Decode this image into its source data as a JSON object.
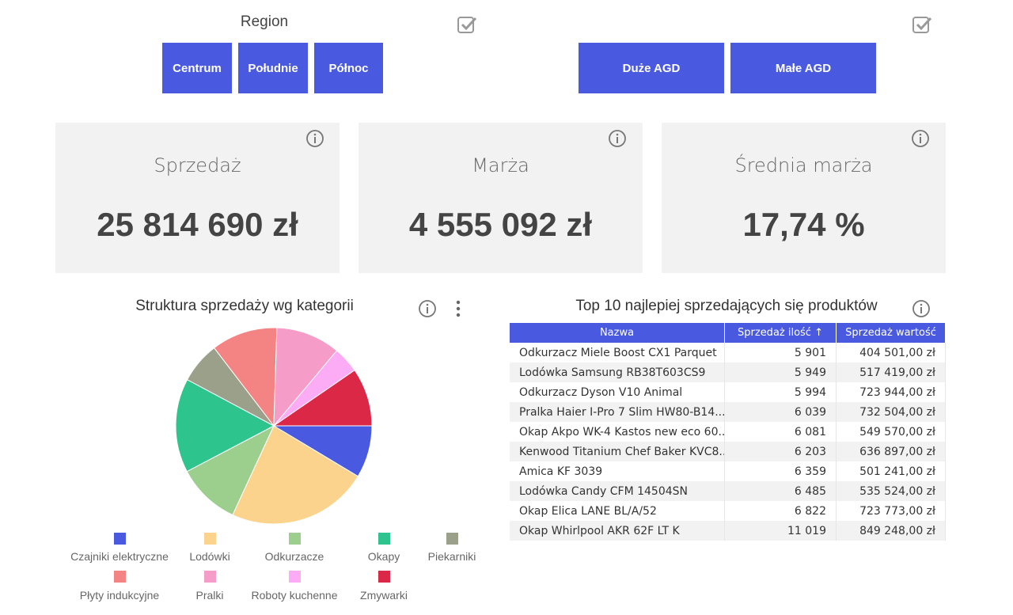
{
  "slicers": {
    "region_title": "Region",
    "region_buttons": [
      "Centrum",
      "Południe",
      "Północ"
    ],
    "category_buttons": [
      "Duże AGD",
      "Małe AGD"
    ]
  },
  "kpis": [
    {
      "label": "Sprzedaż",
      "value": "25 814 690 zł"
    },
    {
      "label": "Marża",
      "value": "4 555 092 zł"
    },
    {
      "label": "Średnia marża",
      "value": "17,74 %"
    }
  ],
  "chart": {
    "title": "Struktura sprzedaży wg kategorii"
  },
  "chart_data": {
    "type": "pie",
    "title": "Struktura sprzedaży wg kategorii",
    "categories": [
      "Czajniki elektryczne",
      "Lodówki",
      "Odkurzacze",
      "Okapy",
      "Piekarniki",
      "Płyty indukcyjne",
      "Pralki",
      "Roboty kuchenne",
      "Zmywarki"
    ],
    "values": [
      8.6,
      23.3,
      10.4,
      15.5,
      6.8,
      10.9,
      10.6,
      4.3,
      9.6
    ],
    "colors": [
      "#4a5ae0",
      "#fbd38d",
      "#9ccf8e",
      "#2ec48d",
      "#9aa08a",
      "#f48383",
      "#f59cc8",
      "#fcacf5",
      "#dc2847"
    ],
    "legend": "bottom"
  },
  "table": {
    "title": "Top 10 najlepiej sprzedających się produktów",
    "headers": [
      "Nazwa",
      "Sprzedaż ilość ↑",
      "Sprzedaż wartość"
    ],
    "rows": [
      [
        "Odkurzacz Miele Boost CX1 Parquet",
        "5 901",
        "404 501,00 zł"
      ],
      [
        "Lodówka Samsung RB38T603CS9",
        "5 949",
        "517 419,00 zł"
      ],
      [
        "Odkurzacz Dyson V10 Animal",
        "5 994",
        "723 944,00 zł"
      ],
      [
        "Pralka Haier I-Pro 7 Slim HW80-B14...",
        "6 039",
        "732 504,00 zł"
      ],
      [
        "Okap Akpo WK-4 Kastos new eco 60...",
        "6 081",
        "549 570,00 zł"
      ],
      [
        "Kenwood Titanium Chef Baker KVC8...",
        "6 203",
        "636 897,00 zł"
      ],
      [
        "Amica KF 3039",
        "6 359",
        "501 241,00 zł"
      ],
      [
        "Lodówka Candy CFM 14504SN",
        "6 485",
        "535 524,00 zł"
      ],
      [
        "Okap Elica LANE BL/A/52",
        "6 822",
        "723 773,00 zł"
      ],
      [
        "Okap Whirlpool AKR 62F LT K",
        "11 019",
        "849 248,00 zł"
      ]
    ]
  }
}
